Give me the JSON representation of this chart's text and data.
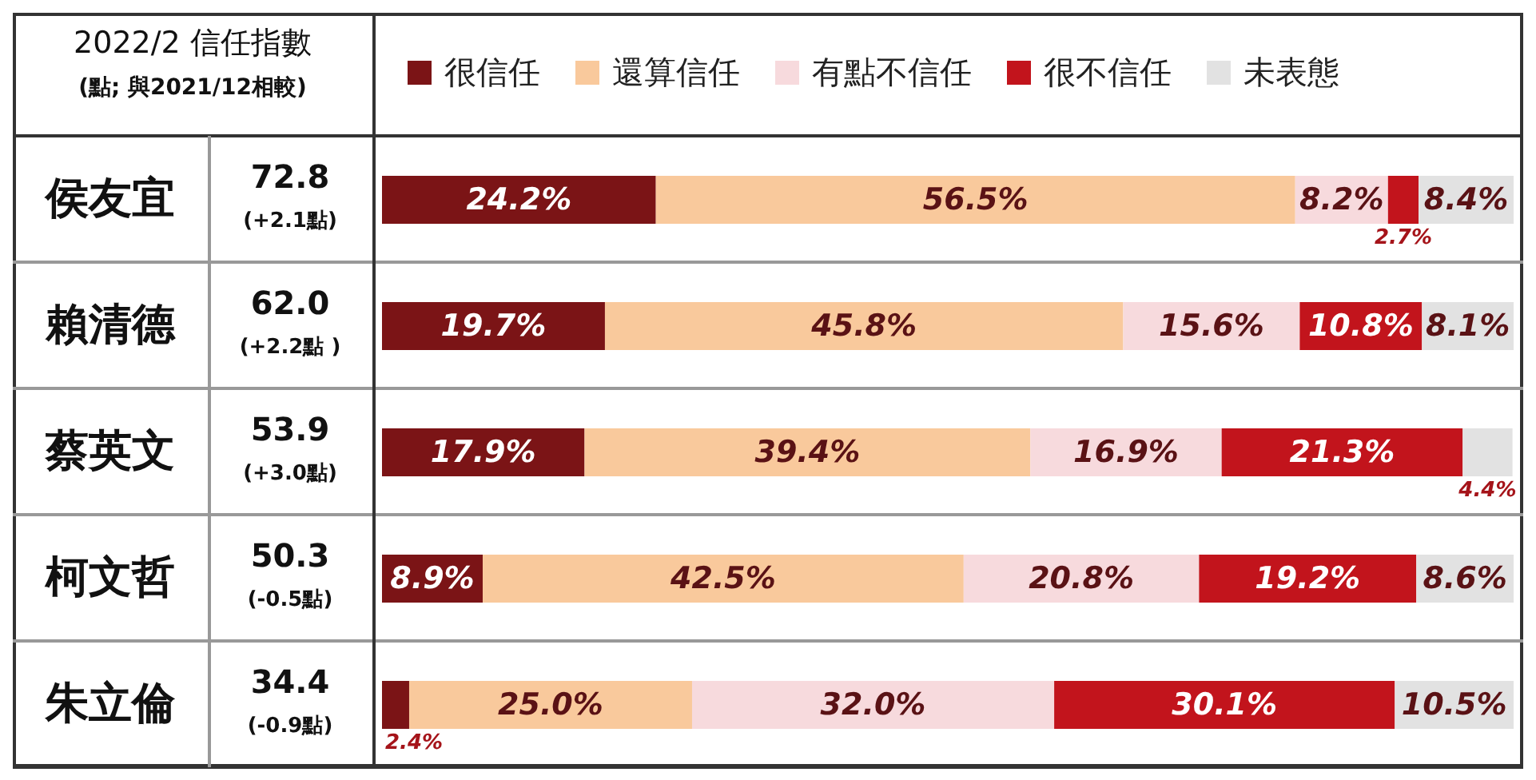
{
  "chart_data": {
    "type": "bar",
    "orientation": "horizontal",
    "stacked": true,
    "title": "2022/2 信任指數",
    "subtitle": "(點; 與2021/12相較)",
    "categories": [
      "侯友宜",
      "賴清德",
      "蔡英文",
      "柯文哲",
      "朱立倫"
    ],
    "annotations": [
      "72.8",
      "(+2.1點)",
      "62.0",
      "(+2.2點 )",
      "53.9",
      "(+3.0點)",
      "50.3",
      "(-0.5點)",
      "34.4",
      "(-0.9點)"
    ],
    "xlim": [
      0,
      100
    ],
    "tick_labels": "y",
    "legend": "top",
    "series": [
      {
        "name": "很信任",
        "color": "#7b1416",
        "values": [
          24.2,
          19.7,
          17.9,
          8.9,
          2.4
        ],
        "value_labels": [
          "24.2%",
          "19.7%",
          "17.9%",
          "8.9%",
          "2.4%"
        ]
      },
      {
        "name": "還算信任",
        "color": "#f9c99c",
        "values": [
          56.5,
          45.8,
          39.4,
          42.5,
          25.0
        ],
        "value_labels": [
          "56.5%",
          "45.8%",
          "39.4%",
          "42.5%",
          "25.0%"
        ]
      },
      {
        "name": "有點不信任",
        "color": "#f7dadd",
        "values": [
          8.2,
          15.6,
          16.9,
          20.8,
          32.0
        ],
        "value_labels": [
          "8.2%",
          "15.6%",
          "16.9%",
          "20.8%",
          "32.0%"
        ]
      },
      {
        "name": "很不信任",
        "color": "#c2141c",
        "values": [
          2.7,
          10.8,
          21.3,
          19.2,
          30.1
        ],
        "value_labels": [
          "2.7%",
          "10.8%",
          "21.3%",
          "19.2%",
          "30.1%"
        ]
      },
      {
        "name": "未表態",
        "color": "#e2e2e2",
        "values": [
          8.4,
          8.1,
          4.4,
          8.6,
          10.5
        ],
        "value_labels": [
          "8.4%",
          "8.1%",
          "4.4%",
          "8.6%",
          "10.5%"
        ]
      }
    ]
  }
}
